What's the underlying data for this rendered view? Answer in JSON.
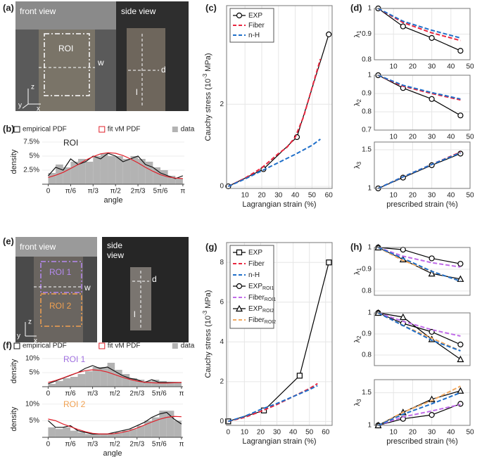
{
  "panels": [
    "(a)",
    "(b)",
    "(c)",
    "(d)",
    "(e)",
    "(f)",
    "(g)",
    "(h)"
  ],
  "photos": {
    "a": {
      "front": "front view",
      "side": "side view",
      "roi": "ROI",
      "w": "w",
      "d": "d",
      "l": "l",
      "axes": [
        "z",
        "y",
        "x"
      ]
    },
    "e": {
      "front": "front view",
      "side": [
        "side",
        "view"
      ],
      "roi1": "ROI 1",
      "roi2": "ROI 2",
      "w": "w",
      "d": "d",
      "l": "l",
      "axes": [
        "z",
        "y",
        "x"
      ]
    }
  },
  "chart_data": [
    {
      "type": "histogram",
      "title": "ROI",
      "title_color": "#222222",
      "xlabel": "angle",
      "ylabel": "density",
      "legend": "top",
      "bins": [
        0,
        10,
        20,
        30,
        40,
        50,
        60,
        70,
        80,
        90,
        100,
        110,
        120,
        130,
        140,
        150,
        160,
        170,
        180
      ],
      "values": [
        2,
        3.5,
        3,
        4,
        4.5,
        4,
        5,
        5.5,
        5,
        5,
        4.5,
        5,
        4.5,
        4,
        3,
        2.5,
        1.5,
        1
      ],
      "bar_color": "#b3b3b3",
      "bar_label": "data",
      "x": [
        0,
        10,
        20,
        30,
        40,
        50,
        60,
        70,
        80,
        90,
        100,
        110,
        120,
        130,
        140,
        150,
        160,
        170,
        180
      ],
      "series": [
        {
          "name": "empirical PDF",
          "color": "#111111",
          "values": [
            1.5,
            3,
            2.5,
            4.5,
            3.5,
            4,
            5,
            4.5,
            5.5,
            5,
            4,
            4.5,
            5,
            3.5,
            3,
            2,
            1.5,
            1,
            1.5
          ]
        },
        {
          "name": "fit vM PDF",
          "color": "#e0202a",
          "values": [
            1.2,
            1.6,
            2.1,
            2.8,
            3.5,
            4.3,
            4.9,
            5.4,
            5.6,
            5.5,
            5.1,
            4.5,
            3.8,
            3,
            2.3,
            1.7,
            1.3,
            1.1,
            1
          ]
        }
      ],
      "xlim": [
        -8,
        182
      ],
      "ylim": [
        0,
        8
      ],
      "xticks": [
        0,
        {
          "value": 30,
          "label": "π/6"
        },
        {
          "value": 60,
          "label": "π/3"
        },
        {
          "value": 90,
          "label": "π/2"
        },
        {
          "value": 120,
          "label": "2π/3"
        },
        {
          "value": 150,
          "label": "5π/6"
        },
        {
          "value": 180,
          "label": "π"
        }
      ],
      "yticks": [
        {
          "value": 2.5,
          "label": "2.5%"
        },
        {
          "value": 5,
          "label": "5%"
        },
        {
          "value": 7.5,
          "label": "7.5%"
        }
      ]
    },
    {
      "type": "line",
      "xlabel": "Lagrangian strain (%)",
      "ylabel": "Cauchy stress (10",
      "ylabel_sup": "-3",
      "ylabel_after": " MPa)",
      "legend": "upper left",
      "grid": true,
      "series": [
        {
          "name": "EXP",
          "color": "#000000",
          "marker": "circle",
          "x": [
            0,
            21,
            41,
            60
          ],
          "values": [
            0,
            0.42,
            1.2,
            3.7
          ]
        },
        {
          "name": "Fiber",
          "color": "#e8263f",
          "dash": true,
          "x": [
            0,
            10,
            20,
            30,
            35,
            40,
            45,
            50,
            55
          ],
          "values": [
            0,
            0.2,
            0.45,
            0.8,
            0.95,
            1.2,
            1.7,
            2.4,
            3.1
          ]
        },
        {
          "name": "n-H",
          "color": "#1f6fc9",
          "dash": true,
          "x": [
            0,
            10,
            20,
            30,
            40,
            50,
            55
          ],
          "values": [
            0,
            0.18,
            0.38,
            0.58,
            0.78,
            1,
            1.15
          ]
        }
      ],
      "xlim": [
        -1,
        62
      ],
      "ylim": [
        -0.05,
        4.4
      ],
      "xticks": [
        10,
        20,
        30,
        40,
        50,
        60
      ],
      "yticks": [
        0,
        2
      ]
    },
    {
      "type": "line",
      "ylabel": "λ",
      "ylabel_sub": "1",
      "grid": true,
      "x": [
        2,
        15,
        30,
        45
      ],
      "series": [
        {
          "color": "#000000",
          "marker": "circle",
          "values": [
            1,
            0.93,
            0.885,
            0.835
          ]
        },
        {
          "color": "#e8263f",
          "dash": true,
          "values": [
            1,
            0.945,
            0.905,
            0.875
          ]
        },
        {
          "color": "#1f6fc9",
          "dash": true,
          "values": [
            1,
            0.95,
            0.915,
            0.885
          ]
        }
      ],
      "xlim": [
        0,
        50
      ],
      "ylim": [
        0.8,
        1
      ],
      "xticks": [
        10,
        20,
        30,
        40,
        50
      ],
      "yticks": [
        0.8,
        0.9,
        1
      ]
    },
    {
      "type": "line",
      "ylabel": "λ",
      "ylabel_sub": "2",
      "grid": true,
      "x": [
        2,
        15,
        30,
        45
      ],
      "series": [
        {
          "color": "#000000",
          "marker": "circle",
          "values": [
            1,
            0.93,
            0.87,
            0.78
          ]
        },
        {
          "color": "#e8263f",
          "dash": true,
          "values": [
            1,
            0.94,
            0.9,
            0.865
          ]
        },
        {
          "color": "#1f6fc9",
          "dash": true,
          "values": [
            1,
            0.945,
            0.905,
            0.87
          ]
        }
      ],
      "xlim": [
        0,
        50
      ],
      "ylim": [
        0.7,
        1
      ],
      "xticks": [
        10,
        20,
        30,
        40,
        50
      ],
      "yticks": [
        0.7,
        0.8,
        0.9,
        1
      ]
    },
    {
      "type": "line",
      "xlabel": "prescribed strain (%)",
      "ylabel": "λ",
      "ylabel_sub": "3",
      "grid": true,
      "x": [
        2,
        15,
        30,
        45
      ],
      "series": [
        {
          "color": "#000000",
          "marker": "circle",
          "values": [
            1,
            1.14,
            1.3,
            1.45
          ]
        },
        {
          "color": "#e8263f",
          "dash": true,
          "values": [
            1,
            1.15,
            1.31,
            1.47
          ]
        },
        {
          "color": "#1f6fc9",
          "dash": true,
          "values": [
            1,
            1.15,
            1.31,
            1.46
          ]
        }
      ],
      "xlim": [
        0,
        50
      ],
      "ylim": [
        1,
        1.6
      ],
      "xticks": [
        10,
        20,
        30,
        40,
        50
      ],
      "yticks": [
        1,
        1.5
      ]
    },
    {
      "type": "histogram",
      "title": "ROI 1",
      "title_color": "#a070e0",
      "ylabel": "density",
      "legend": "top",
      "bins": [
        0,
        10,
        20,
        30,
        40,
        50,
        60,
        70,
        80,
        90,
        100,
        110,
        120,
        130,
        140,
        150,
        160,
        170,
        180
      ],
      "values": [
        1,
        2,
        3,
        3.5,
        4.5,
        5.5,
        7,
        7,
        8.5,
        6,
        4.5,
        3,
        2.5,
        2,
        2.5,
        2,
        1.5,
        1.5
      ],
      "bar_color": "#b3b3b3",
      "bar_label": "data",
      "x": [
        0,
        10,
        20,
        30,
        40,
        50,
        60,
        70,
        80,
        90,
        100,
        110,
        120,
        130,
        140,
        150,
        160,
        170,
        180
      ],
      "series": [
        {
          "name": "empirical PDF",
          "color": "#111111",
          "values": [
            1,
            2,
            3,
            4,
            5,
            6.5,
            7.5,
            6.5,
            7,
            5.5,
            4,
            3,
            2.5,
            1.5,
            2.5,
            1.5,
            1.5,
            1.5,
            1.5
          ]
        },
        {
          "name": "fit vM PDF",
          "color": "#e0202a",
          "values": [
            1.5,
            2.2,
            3.1,
            4.1,
            5,
            5.7,
            6,
            5.8,
            5.2,
            4.3,
            3.4,
            2.6,
            2,
            1.6,
            1.4,
            1.3,
            1.3,
            1.4,
            1.5
          ]
        }
      ],
      "xlim": [
        -8,
        182
      ],
      "ylim": [
        0,
        11
      ],
      "xticks": [
        0,
        {
          "value": 30,
          "label": "π/6"
        },
        {
          "value": 60,
          "label": "π/3"
        },
        {
          "value": 90,
          "label": "π/2"
        },
        {
          "value": 120,
          "label": "2π/3"
        },
        {
          "value": 150,
          "label": "5π/6"
        },
        {
          "value": 180,
          "label": "π"
        }
      ],
      "yticks": [
        {
          "value": 5,
          "label": "5%"
        },
        {
          "value": 10,
          "label": "10%"
        }
      ]
    },
    {
      "type": "histogram",
      "title": "ROI 2",
      "title_color": "#f0a050",
      "xlabel": "angle",
      "ylabel": "density",
      "bins": [
        0,
        10,
        20,
        30,
        40,
        50,
        60,
        70,
        80,
        90,
        100,
        110,
        120,
        130,
        140,
        150,
        160,
        170,
        180
      ],
      "values": [
        3,
        2.5,
        3,
        2,
        1.5,
        1,
        1,
        1,
        1,
        1.5,
        2,
        2.5,
        3.5,
        5,
        6,
        8,
        8,
        5
      ],
      "bar_color": "#b3b3b3",
      "x": [
        0,
        10,
        20,
        30,
        40,
        50,
        60,
        70,
        80,
        90,
        100,
        110,
        120,
        130,
        140,
        150,
        160,
        170,
        180
      ],
      "series": [
        {
          "color": "#111111",
          "values": [
            5,
            3,
            3,
            3.5,
            2,
            1.5,
            1,
            1,
            1,
            1.5,
            2,
            2.5,
            3.5,
            4.5,
            6,
            7,
            7.5,
            5.5,
            4
          ]
        },
        {
          "color": "#e0202a",
          "values": [
            5.5,
            5,
            4,
            3.2,
            2.4,
            1.7,
            1.2,
            1,
            1,
            1.1,
            1.5,
            2,
            2.8,
            3.7,
            4.6,
            5.4,
            6,
            6.3,
            6.2
          ]
        }
      ],
      "xlim": [
        -8,
        182
      ],
      "ylim": [
        0,
        11
      ],
      "xticks": [
        0,
        {
          "value": 30,
          "label": "π/6"
        },
        {
          "value": 60,
          "label": "π/3"
        },
        {
          "value": 90,
          "label": "π/2"
        },
        {
          "value": 120,
          "label": "2π/3"
        },
        {
          "value": 150,
          "label": "5π/6"
        },
        {
          "value": 180,
          "label": "π"
        }
      ],
      "yticks": [
        {
          "value": 5,
          "label": "5%"
        },
        {
          "value": 10,
          "label": "10%"
        }
      ]
    },
    {
      "type": "line",
      "xlabel": "Lagrangian strain (%)",
      "ylabel": "Cauchy stress (10",
      "ylabel_sup": "-3",
      "ylabel_after": " MPa)",
      "legend": "upper left",
      "grid": true,
      "series": [
        {
          "name": "EXP",
          "color": "#000000",
          "marker": "square",
          "x": [
            0,
            22,
            44,
            62
          ],
          "values": [
            0,
            0.55,
            2.3,
            8
          ]
        },
        {
          "name": "Fiber",
          "color": "#e8263f",
          "dash": true,
          "x": [
            0,
            10,
            20,
            30,
            40,
            50,
            55
          ],
          "values": [
            0,
            0.2,
            0.5,
            0.85,
            1.25,
            1.65,
            1.9
          ]
        },
        {
          "name": "n-H",
          "color": "#1f6fc9",
          "dash": true,
          "x": [
            0,
            10,
            20,
            30,
            40,
            50,
            55
          ],
          "values": [
            0,
            0.25,
            0.6,
            0.9,
            1.25,
            1.6,
            1.8
          ]
        },
        {
          "name": "EXP",
          "sub": "ROI1",
          "color": "#000000",
          "marker": "circle"
        },
        {
          "name": "Fiber",
          "sub": "ROI1",
          "color": "#c06be8",
          "dash": true
        },
        {
          "name": "EXP",
          "sub": "ROI2",
          "color": "#000000",
          "marker": "triangle"
        },
        {
          "name": "Fiber",
          "sub": "ROI2",
          "color": "#f0a860",
          "dash": true
        }
      ],
      "xlim": [
        -1,
        64
      ],
      "ylim": [
        -0.2,
        9
      ],
      "xticks": [
        0,
        10,
        20,
        30,
        40,
        50,
        60
      ],
      "yticks": [
        0,
        2,
        4,
        6,
        8
      ]
    },
    {
      "type": "line",
      "ylabel": "λ",
      "ylabel_sub": "1",
      "grid": true,
      "x": [
        2,
        15,
        30,
        45
      ],
      "series": [
        {
          "color": "#000000",
          "marker": "circle",
          "values": [
            1,
            0.99,
            0.95,
            0.925
          ]
        },
        {
          "color": "#000000",
          "marker": "triangle",
          "values": [
            1,
            0.945,
            0.88,
            0.855
          ]
        },
        {
          "color": "#c06be8",
          "dash": true,
          "values": [
            1,
            0.96,
            0.93,
            0.91
          ]
        },
        {
          "color": "#f0a860",
          "dash": true,
          "values": [
            1,
            0.94,
            0.89,
            0.845
          ]
        },
        {
          "color": "#1f6fc9",
          "dash": true,
          "values": [
            1,
            0.95,
            0.89,
            0.845
          ]
        }
      ],
      "xlim": [
        0,
        50
      ],
      "ylim": [
        0.78,
        1
      ],
      "yticks": [
        0.8,
        0.9,
        1
      ]
    },
    {
      "type": "line",
      "ylabel": "λ",
      "ylabel_sub": "2",
      "grid": true,
      "x": [
        2,
        15,
        30,
        45
      ],
      "series": [
        {
          "color": "#000000",
          "marker": "circle",
          "values": [
            1,
            0.95,
            0.91,
            0.85
          ]
        },
        {
          "color": "#000000",
          "marker": "triangle",
          "values": [
            1,
            0.98,
            0.875,
            0.78
          ]
        },
        {
          "color": "#c06be8",
          "dash": true,
          "values": [
            1,
            0.96,
            0.92,
            0.89
          ]
        },
        {
          "color": "#f0a860",
          "dash": true,
          "values": [
            1,
            0.94,
            0.88,
            0.82
          ]
        },
        {
          "color": "#1f6fc9",
          "dash": true,
          "values": [
            1,
            0.94,
            0.87,
            0.82
          ]
        }
      ],
      "xlim": [
        0,
        50
      ],
      "ylim": [
        0.75,
        1
      ],
      "yticks": [
        0.8,
        0.9,
        1
      ]
    },
    {
      "type": "line",
      "xlabel": "prescribed strain (%)",
      "ylabel": "λ",
      "ylabel_sub": "3",
      "grid": true,
      "x": [
        2,
        15,
        30,
        45
      ],
      "series": [
        {
          "color": "#000000",
          "marker": "circle",
          "values": [
            1,
            1.1,
            1.16,
            1.33
          ]
        },
        {
          "color": "#000000",
          "marker": "triangle",
          "values": [
            1,
            1.2,
            1.4,
            1.53
          ]
        },
        {
          "color": "#c06be8",
          "dash": true,
          "values": [
            1,
            1.13,
            1.22,
            1.32
          ]
        },
        {
          "color": "#f0a860",
          "dash": true,
          "values": [
            1,
            1.2,
            1.38,
            1.6
          ]
        },
        {
          "color": "#1f6fc9",
          "dash": true,
          "values": [
            1,
            1.17,
            1.33,
            1.5
          ]
        }
      ],
      "xlim": [
        0,
        50
      ],
      "ylim": [
        1,
        1.7
      ],
      "xticks": [
        10,
        20,
        30,
        40,
        50
      ],
      "yticks": [
        1,
        1.5
      ]
    }
  ]
}
